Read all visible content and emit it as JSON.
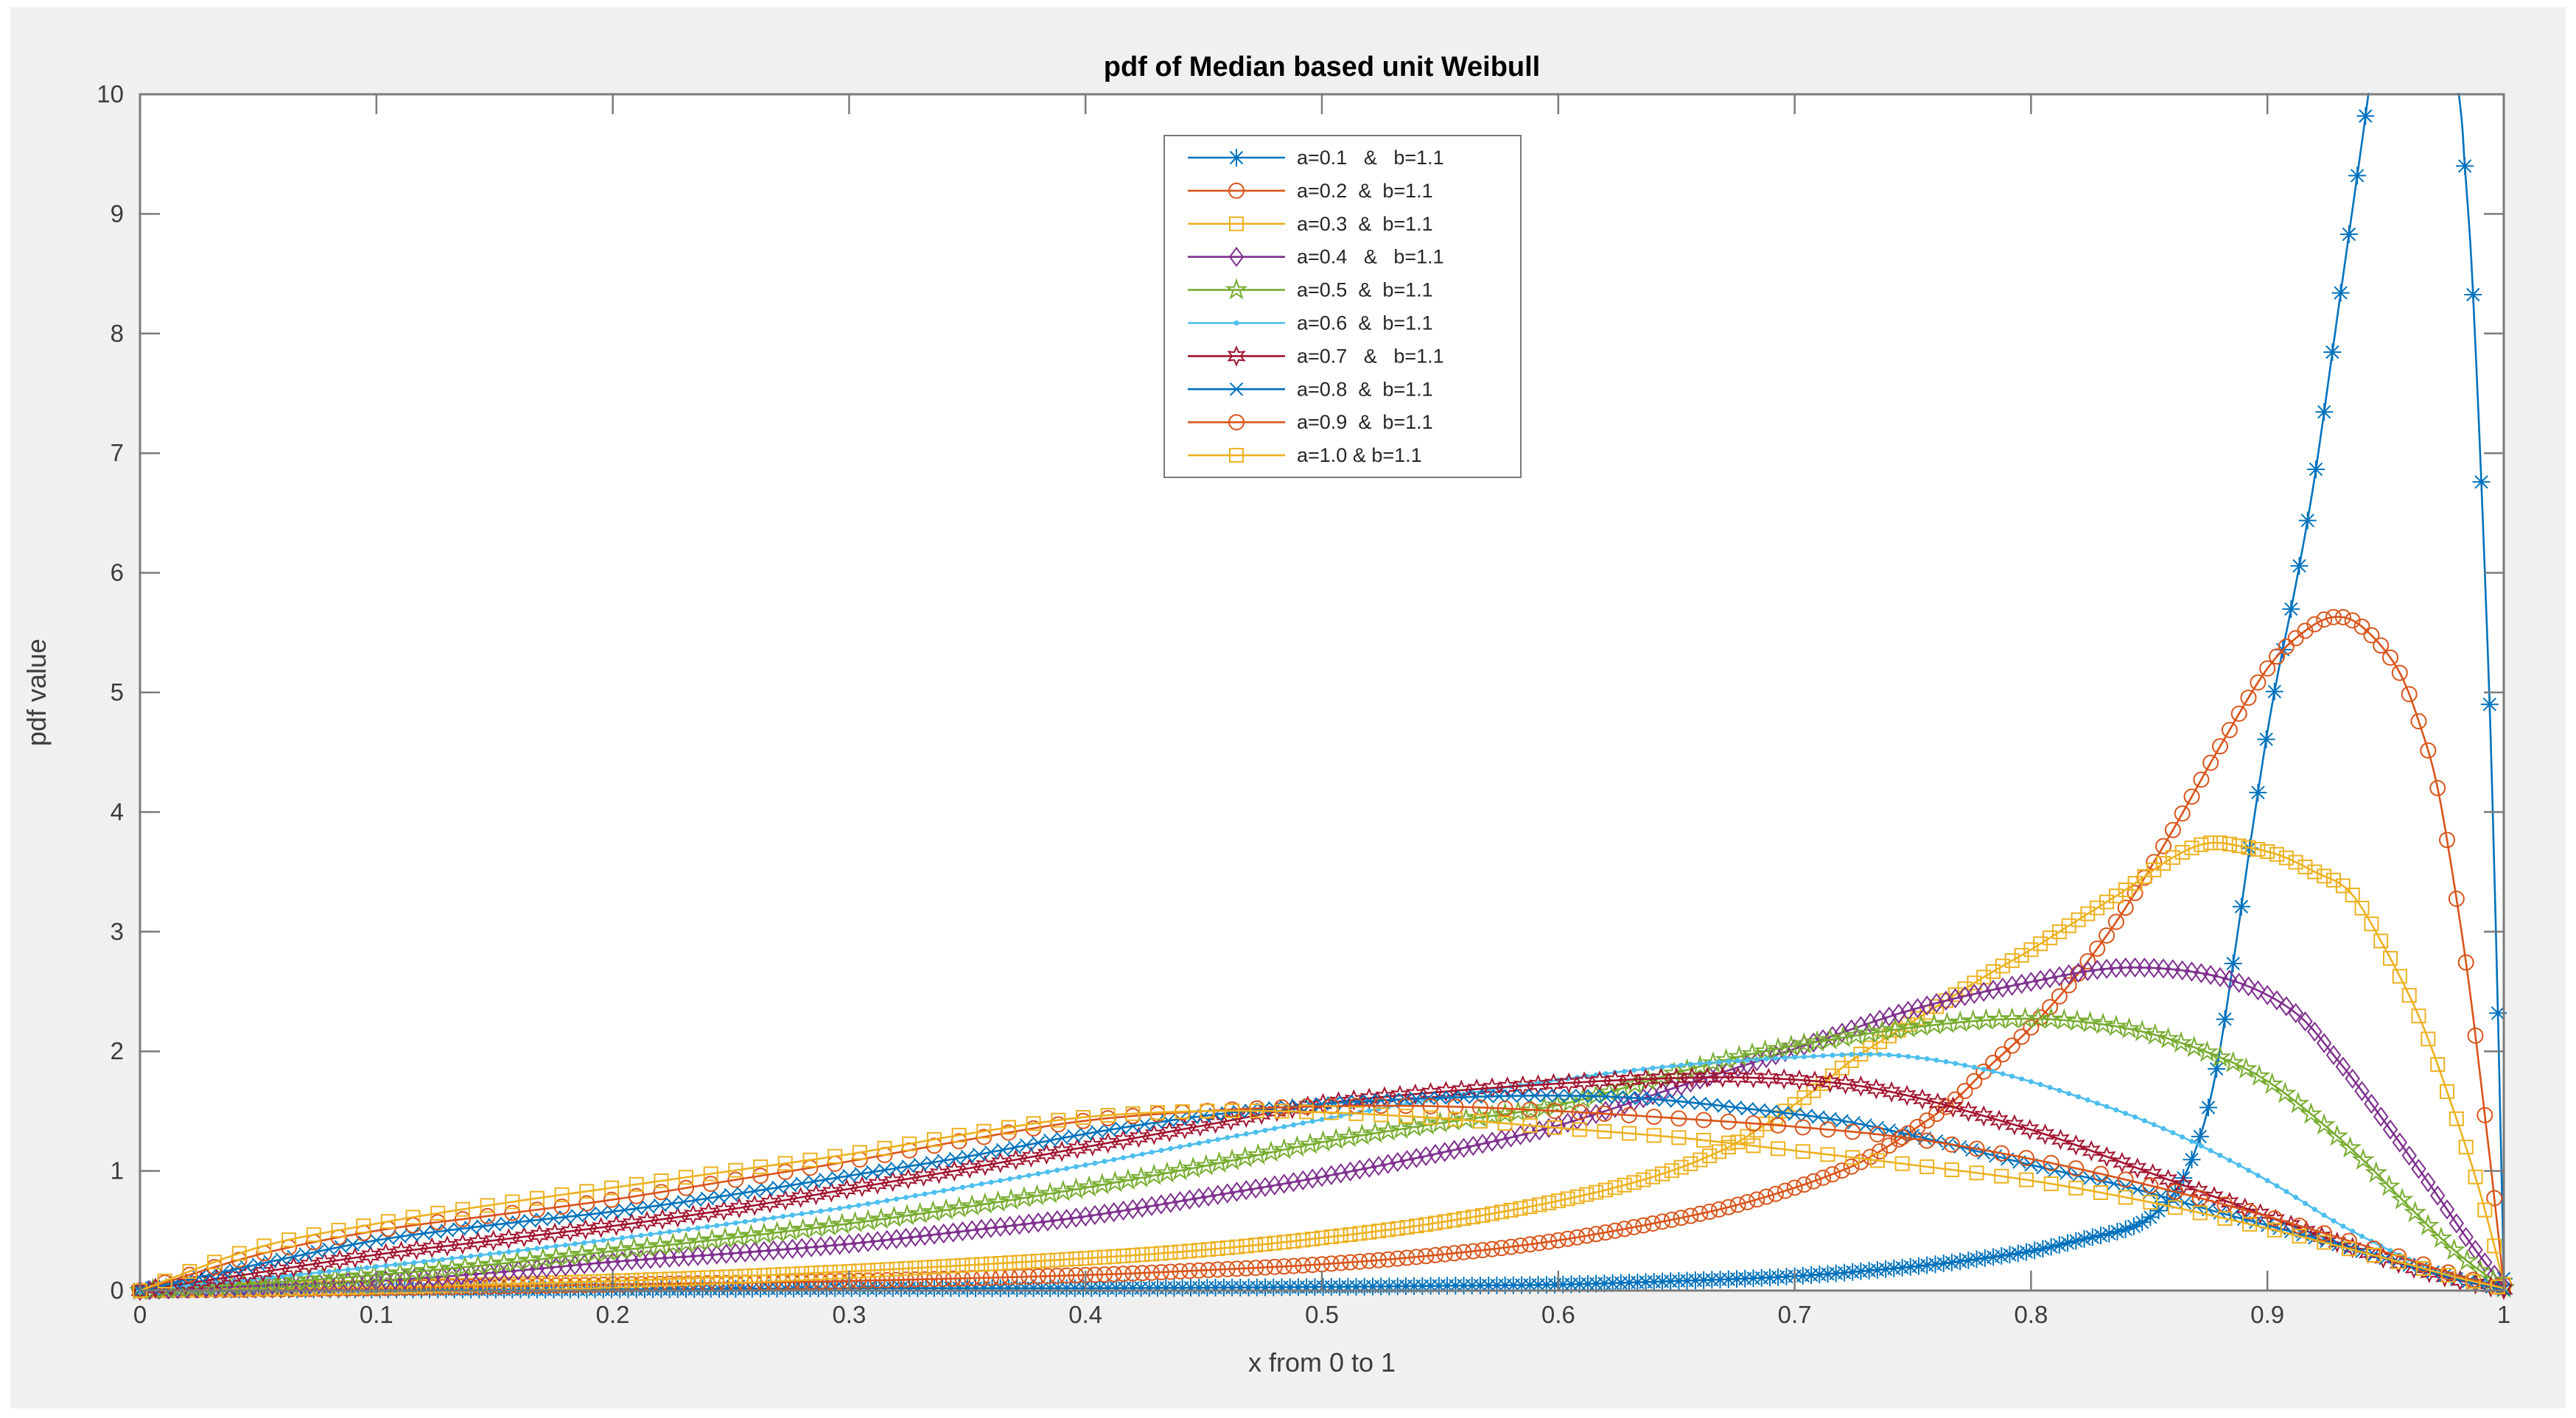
{
  "figure": {
    "background": "#f0f0f0",
    "plot_background": "#ffffff",
    "axis_color": "#7b7b7b",
    "text_color": "#3c3c3c",
    "title_color": "#000000"
  },
  "chart_data": {
    "type": "line",
    "title": "pdf of Median based unit Weibull",
    "xlabel": "x from 0 to 1",
    "ylabel": "pdf value",
    "xlim": [
      0,
      1
    ],
    "ylim": [
      0,
      10
    ],
    "grid": false,
    "legend_position": "upper center",
    "xticks": [
      "0",
      "0.1",
      "0.2",
      "0.3",
      "0.4",
      "0.5",
      "0.6",
      "0.7",
      "0.8",
      "0.9",
      "1"
    ],
    "yticks": [
      "0",
      "1",
      "2",
      "3",
      "4",
      "5",
      "6",
      "7",
      "8",
      "9",
      "10"
    ],
    "series": [
      {
        "name": "a-0.1",
        "label": "a=0.1   &   b=1.1",
        "color": "#0072BD",
        "marker": "asterisk",
        "marker_step": 0.0035,
        "points": [
          [
            0,
            0.01
          ],
          [
            0.1,
            0.01
          ],
          [
            0.2,
            0.01
          ],
          [
            0.3,
            0.02
          ],
          [
            0.4,
            0.02
          ],
          [
            0.5,
            0.03
          ],
          [
            0.55,
            0.04
          ],
          [
            0.6,
            0.05
          ],
          [
            0.65,
            0.08
          ],
          [
            0.7,
            0.12
          ],
          [
            0.75,
            0.2
          ],
          [
            0.78,
            0.27
          ],
          [
            0.8,
            0.33
          ],
          [
            0.82,
            0.42
          ],
          [
            0.845,
            0.55
          ],
          [
            0.86,
            0.8
          ],
          [
            0.87,
            1.2
          ],
          [
            0.878,
            1.8
          ],
          [
            0.886,
            2.8
          ],
          [
            0.894,
            3.9
          ],
          [
            0.902,
            4.9
          ],
          [
            0.912,
            5.9
          ],
          [
            0.92,
            6.8
          ],
          [
            0.93,
            8.2
          ],
          [
            0.94,
            9.6
          ],
          [
            0.95,
            11.0
          ],
          [
            0.962,
            11.9
          ],
          [
            0.972,
            11.2
          ],
          [
            0.981,
            10.0
          ],
          [
            0.9835,
            9.4
          ],
          [
            0.986,
            8.7
          ],
          [
            0.988,
            7.9
          ],
          [
            0.99,
            7.0
          ],
          [
            0.992,
            6.0
          ],
          [
            0.994,
            4.9
          ],
          [
            0.996,
            3.5
          ],
          [
            0.998,
            1.9
          ],
          [
            1,
            0.1
          ]
        ]
      },
      {
        "name": "a-0.2",
        "label": "a=0.2  &  b=1.1",
        "color": "#D95319",
        "marker": "circle",
        "marker_step": 0.004,
        "points": [
          [
            0,
            0
          ],
          [
            0.1,
            0.02
          ],
          [
            0.2,
            0.05
          ],
          [
            0.3,
            0.08
          ],
          [
            0.4,
            0.13
          ],
          [
            0.45,
            0.17
          ],
          [
            0.5,
            0.22
          ],
          [
            0.55,
            0.3
          ],
          [
            0.6,
            0.42
          ],
          [
            0.65,
            0.6
          ],
          [
            0.682,
            0.75
          ],
          [
            0.713,
            0.95
          ],
          [
            0.734,
            1.14
          ],
          [
            0.765,
            1.55
          ],
          [
            0.781,
            1.85
          ],
          [
            0.8,
            2.2
          ],
          [
            0.82,
            2.65
          ],
          [
            0.84,
            3.2
          ],
          [
            0.86,
            3.85
          ],
          [
            0.88,
            4.55
          ],
          [
            0.9,
            5.2
          ],
          [
            0.915,
            5.5
          ],
          [
            0.928,
            5.63
          ],
          [
            0.94,
            5.55
          ],
          [
            0.955,
            5.2
          ],
          [
            0.965,
            4.7
          ],
          [
            0.972,
            4.2
          ],
          [
            0.979,
            3.4
          ],
          [
            0.985,
            2.6
          ],
          [
            0.99,
            1.8
          ],
          [
            0.995,
            0.95
          ],
          [
            1,
            0.05
          ]
        ]
      },
      {
        "name": "a-0.3",
        "label": "a=0.3  &  b=1.1",
        "color": "#EDB120",
        "marker": "square",
        "marker_step": 0.004,
        "points": [
          [
            0,
            0
          ],
          [
            0.1,
            0.03
          ],
          [
            0.2,
            0.08
          ],
          [
            0.3,
            0.16
          ],
          [
            0.4,
            0.27
          ],
          [
            0.45,
            0.34
          ],
          [
            0.5,
            0.44
          ],
          [
            0.55,
            0.57
          ],
          [
            0.6,
            0.75
          ],
          [
            0.64,
            0.95
          ],
          [
            0.67,
            1.18
          ],
          [
            0.69,
            1.42
          ],
          [
            0.71,
            1.7
          ],
          [
            0.726,
            1.95
          ],
          [
            0.75,
            2.25
          ],
          [
            0.78,
            2.62
          ],
          [
            0.8,
            2.85
          ],
          [
            0.82,
            3.1
          ],
          [
            0.84,
            3.35
          ],
          [
            0.86,
            3.62
          ],
          [
            0.875,
            3.74
          ],
          [
            0.89,
            3.71
          ],
          [
            0.905,
            3.64
          ],
          [
            0.92,
            3.5
          ],
          [
            0.935,
            3.33
          ],
          [
            0.95,
            2.85
          ],
          [
            0.965,
            2.25
          ],
          [
            0.978,
            1.55
          ],
          [
            0.988,
            0.95
          ],
          [
            0.995,
            0.45
          ],
          [
            1,
            0.05
          ]
        ]
      },
      {
        "name": "a-0.4",
        "label": "a=0.4   &   b=1.1",
        "color": "#7E2F8E",
        "marker": "diamond",
        "marker_step": 0.004,
        "points": [
          [
            0,
            0
          ],
          [
            0.05,
            0.04
          ],
          [
            0.1,
            0.08
          ],
          [
            0.15,
            0.15
          ],
          [
            0.2,
            0.24
          ],
          [
            0.25,
            0.31
          ],
          [
            0.3,
            0.39
          ],
          [
            0.35,
            0.5
          ],
          [
            0.4,
            0.62
          ],
          [
            0.45,
            0.78
          ],
          [
            0.5,
            0.95
          ],
          [
            0.55,
            1.15
          ],
          [
            0.6,
            1.38
          ],
          [
            0.65,
            1.7
          ],
          [
            0.7,
            2.02
          ],
          [
            0.75,
            2.35
          ],
          [
            0.8,
            2.58
          ],
          [
            0.84,
            2.7
          ],
          [
            0.88,
            2.62
          ],
          [
            0.91,
            2.35
          ],
          [
            0.93,
            1.92
          ],
          [
            0.95,
            1.4
          ],
          [
            0.97,
            0.85
          ],
          [
            0.985,
            0.42
          ],
          [
            1,
            0.03
          ]
        ]
      },
      {
        "name": "a-0.5",
        "label": "a=0.5  &  b=1.1",
        "color": "#77AC30",
        "marker": "pentagram",
        "marker_step": 0.0055,
        "points": [
          [
            0,
            0
          ],
          [
            0.05,
            0.06
          ],
          [
            0.1,
            0.13
          ],
          [
            0.15,
            0.22
          ],
          [
            0.2,
            0.33
          ],
          [
            0.25,
            0.44
          ],
          [
            0.3,
            0.56
          ],
          [
            0.35,
            0.7
          ],
          [
            0.4,
            0.86
          ],
          [
            0.45,
            1.04
          ],
          [
            0.5,
            1.24
          ],
          [
            0.55,
            1.4
          ],
          [
            0.6,
            1.55
          ],
          [
            0.65,
            1.82
          ],
          [
            0.68,
            1.97
          ],
          [
            0.71,
            2.08
          ],
          [
            0.75,
            2.2
          ],
          [
            0.79,
            2.27
          ],
          [
            0.82,
            2.25
          ],
          [
            0.85,
            2.15
          ],
          [
            0.88,
            1.95
          ],
          [
            0.9,
            1.75
          ],
          [
            0.92,
            1.45
          ],
          [
            0.94,
            1.1
          ],
          [
            0.96,
            0.7
          ],
          [
            0.98,
            0.32
          ],
          [
            1,
            0.02
          ]
        ]
      },
      {
        "name": "a-0.6",
        "label": "a=0.6  &  b=1.1",
        "color": "#4DBEEE",
        "marker": "point",
        "marker_step": 0.004,
        "points": [
          [
            0,
            0
          ],
          [
            0.05,
            0.1
          ],
          [
            0.1,
            0.2
          ],
          [
            0.15,
            0.31
          ],
          [
            0.2,
            0.43
          ],
          [
            0.25,
            0.56
          ],
          [
            0.3,
            0.7
          ],
          [
            0.35,
            0.87
          ],
          [
            0.4,
            1.05
          ],
          [
            0.45,
            1.24
          ],
          [
            0.5,
            1.43
          ],
          [
            0.55,
            1.61
          ],
          [
            0.6,
            1.76
          ],
          [
            0.65,
            1.88
          ],
          [
            0.7,
            1.95
          ],
          [
            0.74,
            1.97
          ],
          [
            0.78,
            1.85
          ],
          [
            0.82,
            1.62
          ],
          [
            0.86,
            1.32
          ],
          [
            0.9,
            0.92
          ],
          [
            0.93,
            0.56
          ],
          [
            0.96,
            0.26
          ],
          [
            0.98,
            0.12
          ],
          [
            1,
            0.01
          ]
        ]
      },
      {
        "name": "a-0.7",
        "label": "a=0.7   &   b=1.1",
        "color": "#A2142F",
        "marker": "hexagram",
        "marker_step": 0.0065,
        "points": [
          [
            0,
            0
          ],
          [
            0.05,
            0.15
          ],
          [
            0.1,
            0.3
          ],
          [
            0.15,
            0.42
          ],
          [
            0.2,
            0.54
          ],
          [
            0.25,
            0.68
          ],
          [
            0.3,
            0.85
          ],
          [
            0.35,
            1.02
          ],
          [
            0.4,
            1.2
          ],
          [
            0.45,
            1.38
          ],
          [
            0.5,
            1.56
          ],
          [
            0.55,
            1.66
          ],
          [
            0.6,
            1.73
          ],
          [
            0.64,
            1.77
          ],
          [
            0.68,
            1.78
          ],
          [
            0.72,
            1.73
          ],
          [
            0.75,
            1.62
          ],
          [
            0.78,
            1.46
          ],
          [
            0.81,
            1.28
          ],
          [
            0.84,
            1.06
          ],
          [
            0.87,
            0.84
          ],
          [
            0.9,
            0.62
          ],
          [
            0.93,
            0.4
          ],
          [
            0.96,
            0.2
          ],
          [
            0.98,
            0.09
          ],
          [
            1,
            0.01
          ]
        ]
      },
      {
        "name": "a-0.8",
        "label": "a=0.8  &  b=1.1",
        "color": "#0072BD",
        "marker": "x",
        "marker_step": 0.005,
        "points": [
          [
            0,
            0
          ],
          [
            0.05,
            0.22
          ],
          [
            0.1,
            0.42
          ],
          [
            0.15,
            0.55
          ],
          [
            0.2,
            0.66
          ],
          [
            0.25,
            0.8
          ],
          [
            0.3,
            0.96
          ],
          [
            0.35,
            1.12
          ],
          [
            0.4,
            1.31
          ],
          [
            0.45,
            1.46
          ],
          [
            0.5,
            1.56
          ],
          [
            0.55,
            1.61
          ],
          [
            0.6,
            1.63
          ],
          [
            0.64,
            1.6
          ],
          [
            0.68,
            1.52
          ],
          [
            0.72,
            1.42
          ],
          [
            0.76,
            1.25
          ],
          [
            0.8,
            1.05
          ],
          [
            0.84,
            0.87
          ],
          [
            0.88,
            0.65
          ],
          [
            0.92,
            0.44
          ],
          [
            0.95,
            0.27
          ],
          [
            0.98,
            0.1
          ],
          [
            1,
            0.01
          ]
        ]
      },
      {
        "name": "a-0.9",
        "label": "a=0.9  &  b=1.1",
        "color": "#D95319",
        "marker": "circle",
        "marker_step": 0.0105,
        "points": [
          [
            0,
            0
          ],
          [
            0.05,
            0.3
          ],
          [
            0.1,
            0.5
          ],
          [
            0.15,
            0.63
          ],
          [
            0.2,
            0.76
          ],
          [
            0.25,
            0.92
          ],
          [
            0.3,
            1.08
          ],
          [
            0.35,
            1.26
          ],
          [
            0.4,
            1.42
          ],
          [
            0.45,
            1.5
          ],
          [
            0.5,
            1.54
          ],
          [
            0.55,
            1.54
          ],
          [
            0.6,
            1.5
          ],
          [
            0.65,
            1.44
          ],
          [
            0.7,
            1.37
          ],
          [
            0.75,
            1.27
          ],
          [
            0.8,
            1.1
          ],
          [
            0.85,
            0.88
          ],
          [
            0.9,
            0.62
          ],
          [
            0.95,
            0.32
          ],
          [
            0.98,
            0.13
          ],
          [
            1,
            0.02
          ]
        ]
      },
      {
        "name": "a-1.0",
        "label": "a=1.0 & b=1.1",
        "color": "#EDB120",
        "marker": "square",
        "marker_step": 0.0105,
        "points": [
          [
            0,
            0
          ],
          [
            0.05,
            0.36
          ],
          [
            0.1,
            0.56
          ],
          [
            0.15,
            0.72
          ],
          [
            0.2,
            0.86
          ],
          [
            0.25,
            1.0
          ],
          [
            0.3,
            1.14
          ],
          [
            0.35,
            1.31
          ],
          [
            0.4,
            1.45
          ],
          [
            0.45,
            1.5
          ],
          [
            0.5,
            1.49
          ],
          [
            0.55,
            1.44
          ],
          [
            0.6,
            1.36
          ],
          [
            0.65,
            1.28
          ],
          [
            0.7,
            1.17
          ],
          [
            0.75,
            1.05
          ],
          [
            0.8,
            0.92
          ],
          [
            0.85,
            0.74
          ],
          [
            0.9,
            0.52
          ],
          [
            0.95,
            0.27
          ],
          [
            0.98,
            0.11
          ],
          [
            1,
            0.02
          ]
        ]
      }
    ]
  }
}
